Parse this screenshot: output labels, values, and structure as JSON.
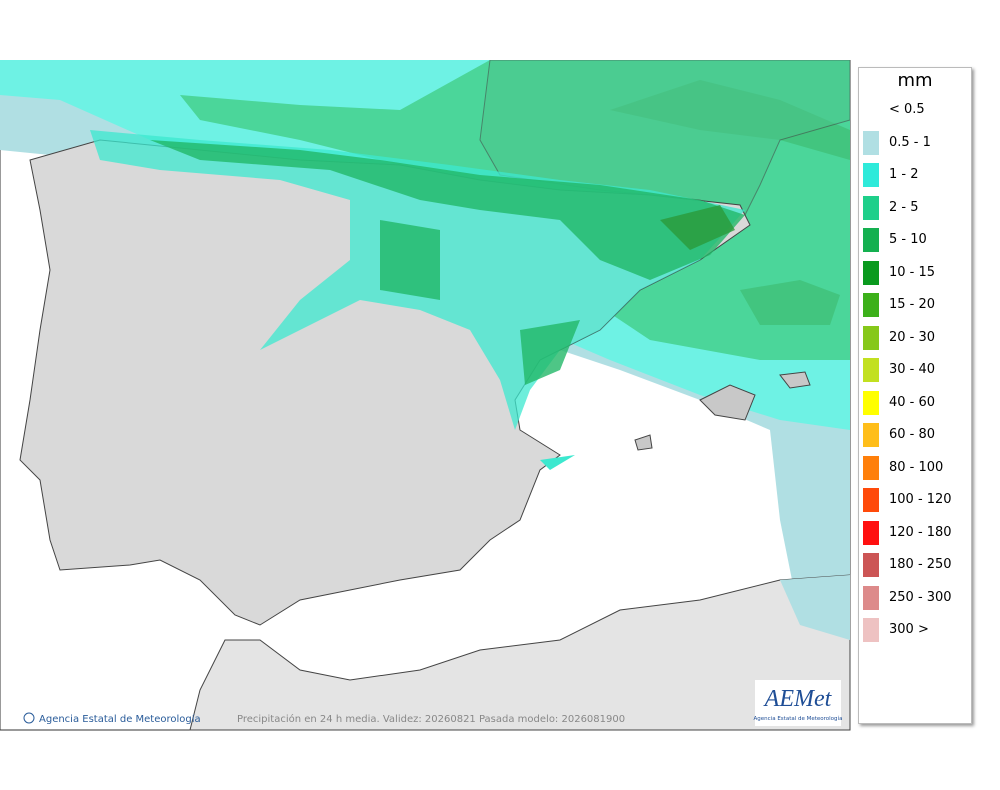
{
  "legend": {
    "title": "mm",
    "items": [
      {
        "label": "< 0.5"
      },
      {
        "label": "0.5 - 1",
        "color": "#b0dfe3"
      },
      {
        "label": "1 - 2",
        "color": "#2eeada"
      },
      {
        "label": "2 - 5",
        "color": "#1ecf8a"
      },
      {
        "label": "5 - 10",
        "color": "#14b050"
      },
      {
        "label": "10 - 15",
        "color": "#0a9a1e"
      },
      {
        "label": "15 - 20",
        "color": "#3cb01a"
      },
      {
        "label": "20 - 30",
        "color": "#86c81a"
      },
      {
        "label": "30 - 40",
        "color": "#c2e020"
      },
      {
        "label": "40 - 60",
        "color": "#ffff00"
      },
      {
        "label": "60 - 80",
        "color": "#ffbe1a"
      },
      {
        "label": "80 - 100",
        "color": "#ff7f0a"
      },
      {
        "label": "100 - 120",
        "color": "#ff4a0a"
      },
      {
        "label": "120 - 180",
        "color": "#ff1010"
      },
      {
        "label": "180 - 250",
        "color": "#cc5555"
      },
      {
        "label": "250 - 300",
        "color": "#dd8a8a"
      },
      {
        "label": "300 >",
        "color": "#eec2c2"
      }
    ]
  },
  "footer": {
    "agency": "Agencia Estatal de Meteorología",
    "caption": "Precipitación en 24 h media. Validez: 20260821 Pasada modelo: 2026081900"
  },
  "logo": {
    "name": "AEMet",
    "subtitle": "Agencia Estatal de Meteorología"
  }
}
